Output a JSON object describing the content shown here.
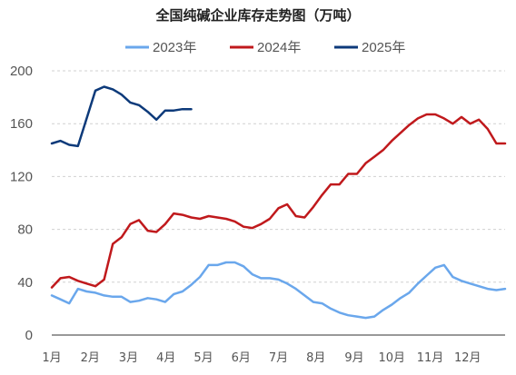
{
  "chart_data": {
    "type": "line",
    "title": "全国纯碱企业库存走势图（万吨）",
    "xlabel": "",
    "ylabel": "",
    "ylim": [
      0,
      200
    ],
    "yticks": [
      0,
      40,
      80,
      120,
      160,
      200
    ],
    "xlim": [
      1,
      53
    ],
    "x_tick_labels": [
      {
        "label": "1月",
        "week": 1
      },
      {
        "label": "2月",
        "week": 5.4
      },
      {
        "label": "3月",
        "week": 9.8
      },
      {
        "label": "4月",
        "week": 14.1
      },
      {
        "label": "5月",
        "week": 18.4
      },
      {
        "label": "6月",
        "week": 22.7
      },
      {
        "label": "7月",
        "week": 27.0
      },
      {
        "label": "8月",
        "week": 31.3
      },
      {
        "label": "9月",
        "week": 35.7
      },
      {
        "label": "10月",
        "week": 40.0
      },
      {
        "label": "11月",
        "week": 44.4
      },
      {
        "label": "12月",
        "week": 48.7
      }
    ],
    "grid": true,
    "legend_position": "top-center",
    "series": [
      {
        "name": "2023年",
        "color": "#6aa7ec",
        "x": [
          1,
          2,
          3,
          4,
          5,
          6,
          7,
          8,
          9,
          10,
          11,
          12,
          13,
          14,
          15,
          16,
          17,
          18,
          19,
          20,
          21,
          22,
          23,
          24,
          25,
          26,
          27,
          28,
          29,
          30,
          31,
          32,
          33,
          34,
          35,
          36,
          37,
          38,
          39,
          40,
          41,
          42,
          43,
          44,
          45,
          46,
          47,
          48,
          49,
          50,
          51,
          52,
          53
        ],
        "values": [
          30,
          27,
          24,
          35,
          33,
          32,
          30,
          29,
          29,
          25,
          26,
          28,
          27,
          25,
          31,
          33,
          38,
          44,
          53,
          53,
          55,
          55,
          52,
          46,
          43,
          43,
          42,
          39,
          35,
          30,
          25,
          24,
          20,
          17,
          15,
          14,
          13,
          14,
          19,
          23,
          28,
          32,
          39,
          45,
          51,
          53,
          44,
          41,
          39,
          37,
          35,
          34,
          35
        ]
      },
      {
        "name": "2024年",
        "color": "#c0191c",
        "x": [
          1,
          2,
          3,
          4,
          5,
          6,
          7,
          8,
          9,
          10,
          11,
          12,
          13,
          14,
          15,
          16,
          17,
          18,
          19,
          20,
          21,
          22,
          23,
          24,
          25,
          26,
          27,
          28,
          29,
          30,
          31,
          32,
          33,
          34,
          35,
          36,
          37,
          38,
          39,
          40,
          41,
          42,
          43,
          44,
          45,
          46,
          47,
          48,
          49,
          50,
          51,
          52,
          53
        ],
        "values": [
          36,
          43,
          44,
          41,
          39,
          37,
          42,
          69,
          74,
          84,
          87,
          79,
          78,
          84,
          92,
          91,
          89,
          88,
          90,
          89,
          88,
          86,
          82,
          81,
          84,
          88,
          96,
          99,
          90,
          89,
          97,
          106,
          114,
          114,
          122,
          122,
          130,
          135,
          140,
          147,
          153,
          159,
          164,
          167,
          167,
          164,
          160,
          165,
          160,
          163,
          156,
          145,
          145
        ]
      },
      {
        "name": "2025年",
        "color": "#0d3a7a",
        "x": [
          1,
          2,
          3,
          4,
          5,
          6,
          7,
          8,
          9,
          10,
          11,
          12,
          13,
          14,
          15,
          16,
          17
        ],
        "values": [
          145,
          147,
          144,
          143,
          164,
          185,
          188,
          186,
          182,
          176,
          174,
          169,
          163,
          170,
          170,
          171,
          171
        ]
      }
    ]
  }
}
